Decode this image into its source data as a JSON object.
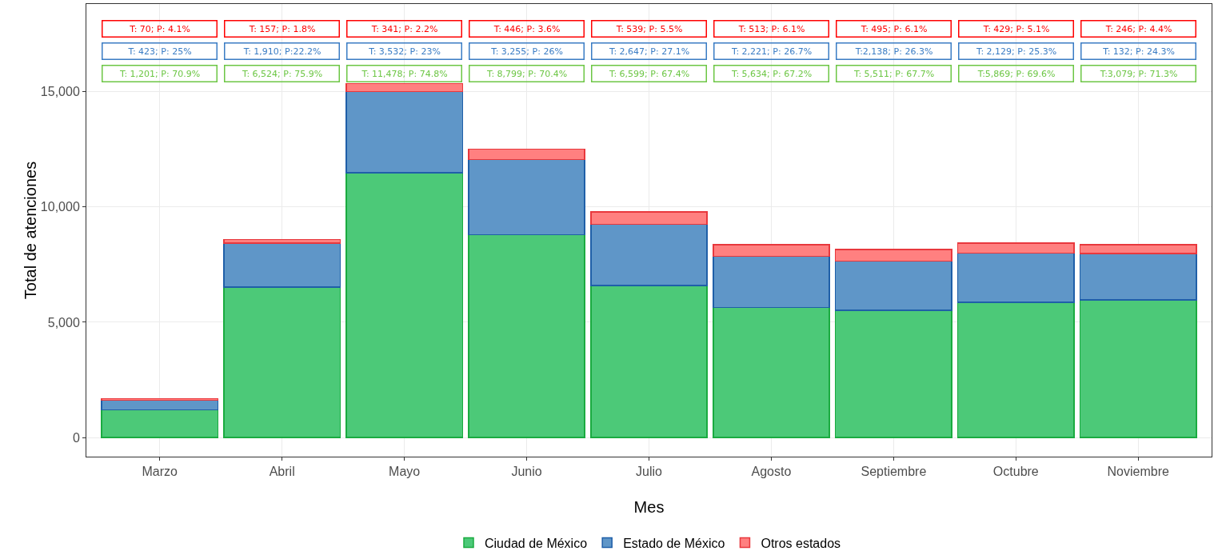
{
  "chart_data": {
    "type": "bar",
    "stacked": true,
    "xlabel": "Mes",
    "ylabel": "Total de atenciones",
    "categories": [
      "Marzo",
      "Abril",
      "Mayo",
      "Junio",
      "Julio",
      "Agosto",
      "Septiembre",
      "Octubre",
      "Noviembre"
    ],
    "ylim": [
      -830,
      18800
    ],
    "yticks": [
      0,
      {
        "value": 5000,
        "label": "5,000"
      },
      {
        "value": 10000,
        "label": "10,000"
      },
      {
        "value": 15000,
        "label": "15,000"
      }
    ],
    "grid": true,
    "legend": "bottom",
    "annotations": [
      "T: 70; P: 4.1%",
      "T: 157; P: 1.8%",
      "T: 341; P: 2.2%",
      "T: 446; P: 3.6%",
      "T: 539; P: 5.5%",
      "T: 513; P: 6.1%",
      "T: 495; P: 6.1%",
      "T: 429; P: 5.1%",
      "T: 246; P: 4.4%",
      "T: 423; P: 25%",
      "T: 1,910; P:22.2%",
      "T: 3,532; P: 23%",
      "T: 3,255; P: 26%",
      "T: 2,647; P: 27.1%",
      "T: 2,221; P: 26.7%",
      "T:2,138; P: 26.3%",
      "T: 2,129; P: 25.3%",
      "T: 132; P: 24.3%",
      "T: 1,201; P: 70.9%",
      "T: 6,524; P: 75.9%",
      "T: 11,478; P: 74.8%",
      "T: 8,799; P: 70.4%",
      "T: 6,599; P: 67.4%",
      "T: 5,634; P: 67.2%",
      "T: 5,511; P: 67.7%",
      "T:5,869; P: 69.6%",
      "T:3,079; P: 71.3%"
    ],
    "series": [
      {
        "name": "Ciudad de México",
        "color": "#4cc978",
        "values": [
          1200,
          6520,
          11480,
          8800,
          6600,
          5630,
          5510,
          5870,
          5970
        ]
      },
      {
        "name": "Estado de México",
        "color": "#5f96c8",
        "values": [
          420,
          1910,
          3530,
          3260,
          2650,
          2220,
          2140,
          2130,
          2010
        ]
      },
      {
        "name": "Otros estados",
        "color": "#ff8080",
        "values": [
          70,
          160,
          340,
          450,
          540,
          510,
          500,
          430,
          380
        ]
      }
    ]
  }
}
